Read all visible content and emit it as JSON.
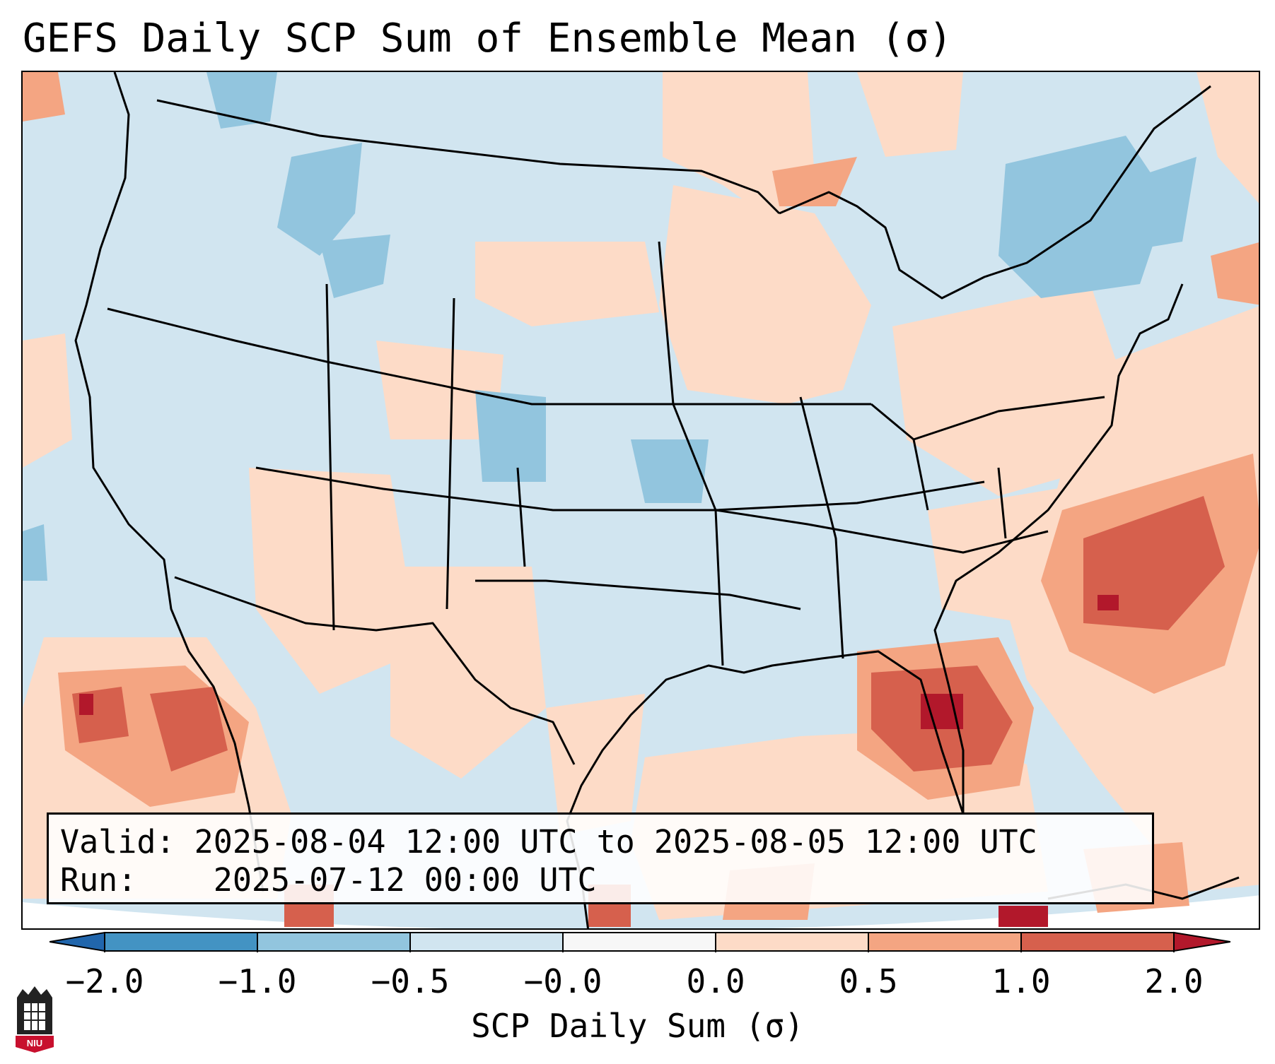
{
  "title": "GEFS Daily SCP Sum of Ensemble Mean (σ)",
  "info": {
    "valid_label": "Valid:",
    "valid_value": "2025-08-04 12:00 UTC to 2025-08-05 12:00 UTC",
    "run_label": "Run:",
    "run_value": "2025-07-12 00:00 UTC"
  },
  "colorbar": {
    "label": "SCP Daily Sum (σ)",
    "ticks": [
      "−2.0",
      "−1.0",
      "−0.5",
      "−0.0",
      "0.0",
      "0.5",
      "1.0",
      "2.0"
    ],
    "colors": [
      "#4393c3",
      "#92c5de",
      "#d1e5f0",
      "#f7f7f7",
      "#fddbc7",
      "#f4a582",
      "#d6604d"
    ],
    "extend_low_color": "#2166ac",
    "extend_high_color": "#b2182b"
  },
  "map_colors": {
    "light_blue": "#d1e5f0",
    "mid_blue": "#92c5de",
    "light_red": "#fddbc7",
    "mid_red": "#f4a582",
    "strong_red": "#d6604d",
    "dark_red": "#b2182b"
  },
  "logo": {
    "text": "NIU",
    "color": "#c8102e"
  }
}
